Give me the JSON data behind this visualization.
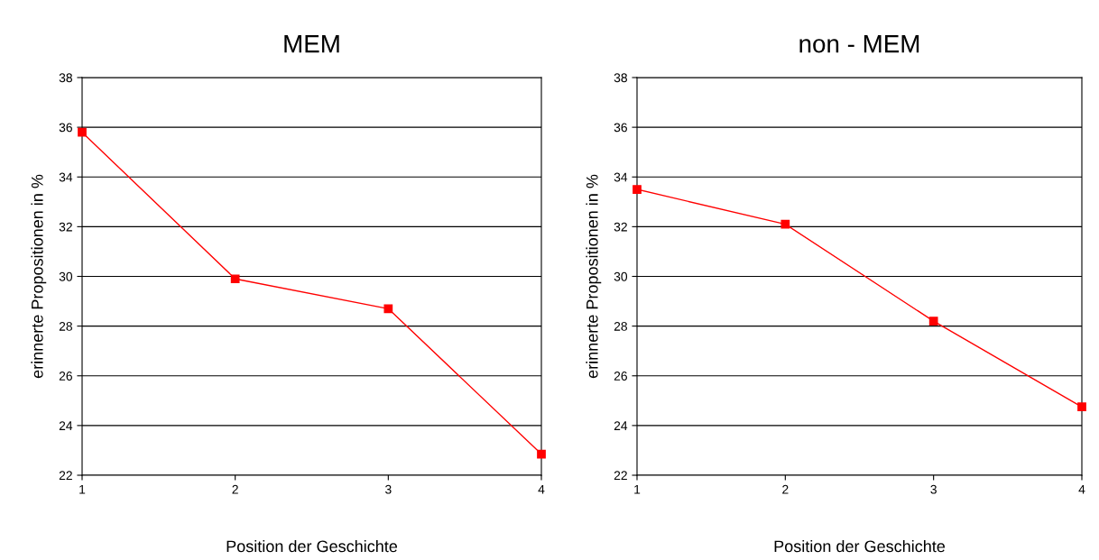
{
  "chart_data": [
    {
      "type": "line",
      "title": "MEM",
      "xlabel": "Position der Geschichte",
      "ylabel": "erinnerte Propositionen in %",
      "x": [
        1,
        2,
        3,
        4
      ],
      "series": [
        {
          "color": "#ff0000",
          "values": [
            35.8,
            29.9,
            28.7,
            22.85
          ]
        }
      ],
      "xlim": [
        1,
        4
      ],
      "xticks": [
        1,
        2,
        3,
        4
      ],
      "ylim": [
        22,
        38
      ],
      "yticks": [
        22,
        24,
        26,
        28,
        30,
        32,
        34,
        36,
        38
      ],
      "grid": "y",
      "marker": "square",
      "line_style": "solid"
    },
    {
      "type": "line",
      "title": "non - MEM",
      "xlabel": "Position der Geschichte",
      "ylabel": "erinnerte Propositionen in %",
      "x": [
        1,
        2,
        3,
        4
      ],
      "series": [
        {
          "color": "#ff0000",
          "values": [
            33.5,
            32.1,
            28.2,
            24.75
          ]
        }
      ],
      "xlim": [
        1,
        4
      ],
      "xticks": [
        1,
        2,
        3,
        4
      ],
      "ylim": [
        22,
        38
      ],
      "yticks": [
        22,
        24,
        26,
        28,
        30,
        32,
        34,
        36,
        38
      ],
      "grid": "y",
      "marker": "square",
      "line_style": "solid"
    }
  ]
}
